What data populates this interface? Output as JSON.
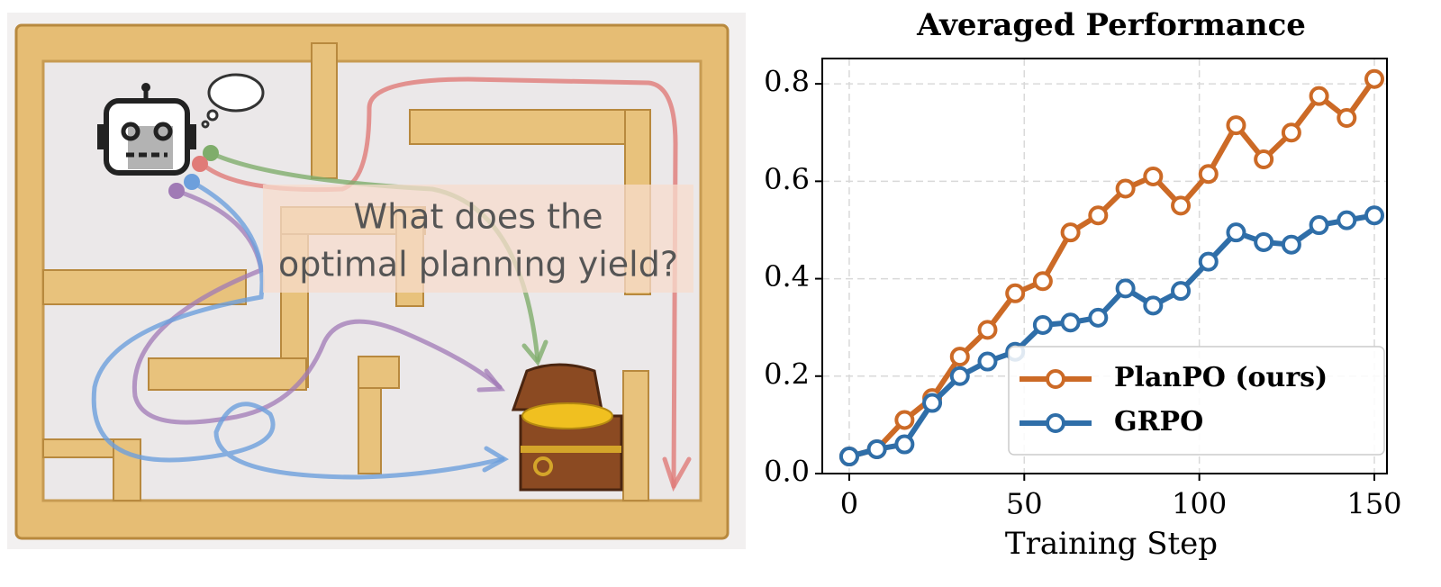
{
  "illustration": {
    "caption_lines": [
      "What does the",
      "optimal planning yield?"
    ]
  },
  "chart_data": {
    "type": "line",
    "title": "Averaged Performance",
    "x_label": "Training Step",
    "x": [
      0,
      7.9,
      15.8,
      23.7,
      31.6,
      39.5,
      47.4,
      55.3,
      63.2,
      71.1,
      78.9,
      86.8,
      94.7,
      102.6,
      110.5,
      118.4,
      126.3,
      134.2,
      142.1,
      150
    ],
    "series": [
      {
        "name": "PlanPO (ours)",
        "color": "#cc6a26",
        "values": [
          0.035,
          0.05,
          0.11,
          0.155,
          0.24,
          0.295,
          0.37,
          0.395,
          0.495,
          0.53,
          0.585,
          0.61,
          0.55,
          0.615,
          0.715,
          0.645,
          0.7,
          0.775,
          0.73,
          0.81
        ]
      },
      {
        "name": "GRPO",
        "color": "#2f6ea8",
        "values": [
          0.035,
          0.05,
          0.06,
          0.145,
          0.2,
          0.23,
          0.25,
          0.305,
          0.31,
          0.32,
          0.38,
          0.345,
          0.375,
          0.435,
          0.495,
          0.475,
          0.47,
          0.51,
          0.52,
          0.53
        ]
      }
    ],
    "xlim": [
      -7.7,
      153.6
    ],
    "ylim": [
      0,
      0.852
    ],
    "xticks": [
      0,
      50,
      100,
      150
    ],
    "yticks": [
      {
        "value": 0,
        "label": "0.0"
      },
      0.2,
      0.4,
      0.6,
      0.8
    ],
    "grid": true,
    "legend": "lower right"
  }
}
